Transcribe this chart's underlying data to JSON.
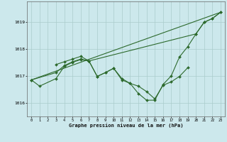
{
  "background_color": "#cce8ec",
  "grid_color": "#aacccc",
  "line_color": "#2d6a2d",
  "xlabel": "Graphe pression niveau de la mer (hPa)",
  "ylim": [
    1015.5,
    1019.75
  ],
  "xlim": [
    -0.5,
    23.5
  ],
  "yticks": [
    1016,
    1017,
    1018,
    1019
  ],
  "xticks": [
    0,
    1,
    2,
    3,
    4,
    5,
    6,
    7,
    8,
    9,
    10,
    11,
    12,
    13,
    14,
    15,
    16,
    17,
    18,
    19,
    20,
    21,
    22,
    23
  ],
  "series1_x": [
    0,
    1,
    3,
    4,
    5,
    6,
    7,
    8,
    9,
    10,
    11,
    12,
    13,
    14,
    15,
    16,
    17,
    18,
    19
  ],
  "series1_y": [
    1016.85,
    1016.62,
    1016.9,
    1017.35,
    1017.5,
    1017.6,
    1017.55,
    1016.98,
    1017.12,
    1017.28,
    1016.85,
    1016.72,
    1016.62,
    1016.42,
    1016.15,
    1016.65,
    1016.78,
    1016.98,
    1017.3
  ],
  "series2_x": [
    0,
    3,
    4,
    5,
    6,
    7,
    8,
    9,
    10,
    11,
    12,
    13,
    14,
    15,
    16,
    17,
    18,
    19,
    20,
    21,
    22,
    23
  ],
  "series2_y": [
    1016.85,
    1017.12,
    1017.38,
    1017.52,
    1017.62,
    1017.55,
    1016.98,
    1017.12,
    1017.28,
    1016.9,
    1016.72,
    1016.35,
    1016.1,
    1016.1,
    1016.68,
    1017.0,
    1017.7,
    1018.08,
    1018.55,
    1018.98,
    1019.12,
    1019.35
  ],
  "series3_x": [
    0,
    23
  ],
  "series3_y": [
    1016.85,
    1019.35
  ],
  "series4_x": [
    3,
    4,
    5,
    6,
    7,
    20,
    21,
    22,
    23
  ],
  "series4_y": [
    1017.42,
    1017.52,
    1017.62,
    1017.72,
    1017.55,
    1018.55,
    1018.98,
    1019.12,
    1019.35
  ]
}
